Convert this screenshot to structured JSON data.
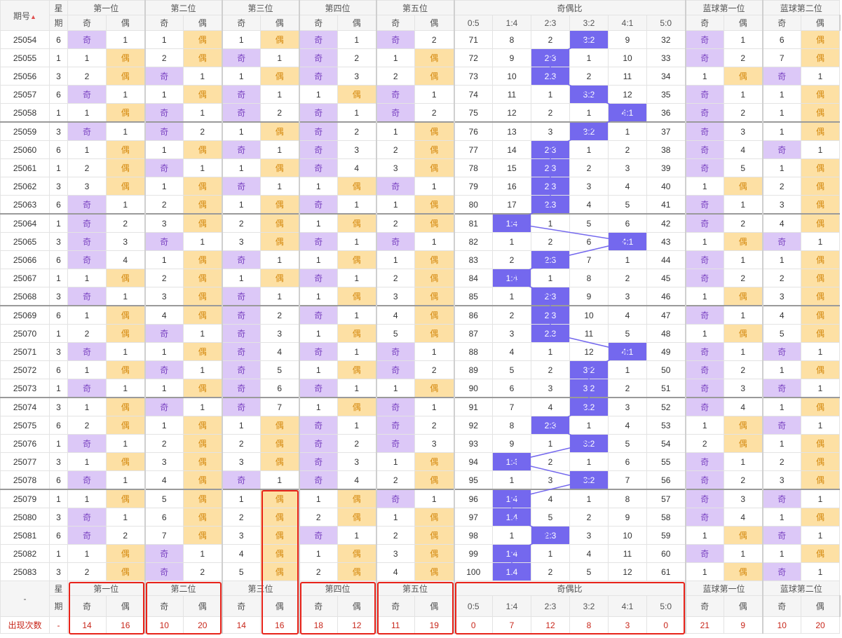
{
  "header": {
    "issue": "期号",
    "weekday_top": "星",
    "weekday_bottom": "期",
    "positions": [
      "第一位",
      "第二位",
      "第三位",
      "第四位",
      "第五位"
    ],
    "odd": "奇",
    "even": "偶",
    "ratio_title": "奇偶比",
    "ratios": [
      "0:5",
      "1:4",
      "2:3",
      "3:2",
      "4:1",
      "5:0"
    ],
    "blue": [
      "蓝球第一位",
      "蓝球第二位"
    ]
  },
  "rows": [
    {
      "id": "25054",
      "wk": "6",
      "c": [
        "奇",
        "1",
        "1",
        "偶",
        "1",
        "偶",
        "奇",
        "1",
        "奇",
        "2"
      ],
      "r": [
        "71",
        "8",
        "2",
        "3:2",
        "9",
        "32"
      ],
      "hi": 3,
      "b": [
        "奇",
        "1",
        "6",
        "偶"
      ]
    },
    {
      "id": "25055",
      "wk": "1",
      "c": [
        "1",
        "偶",
        "2",
        "偶",
        "奇",
        "1",
        "奇",
        "2",
        "1",
        "偶"
      ],
      "r": [
        "72",
        "9",
        "2:3",
        "1",
        "10",
        "33"
      ],
      "hi": 2,
      "b": [
        "奇",
        "2",
        "7",
        "偶"
      ]
    },
    {
      "id": "25056",
      "wk": "3",
      "c": [
        "2",
        "偶",
        "奇",
        "1",
        "1",
        "偶",
        "奇",
        "3",
        "2",
        "偶"
      ],
      "r": [
        "73",
        "10",
        "2:3",
        "2",
        "11",
        "34"
      ],
      "hi": 2,
      "b": [
        "1",
        "偶",
        "奇",
        "1"
      ]
    },
    {
      "id": "25057",
      "wk": "6",
      "c": [
        "奇",
        "1",
        "1",
        "偶",
        "奇",
        "1",
        "1",
        "偶",
        "奇",
        "1"
      ],
      "r": [
        "74",
        "11",
        "1",
        "3:2",
        "12",
        "35"
      ],
      "hi": 3,
      "b": [
        "奇",
        "1",
        "1",
        "偶"
      ]
    },
    {
      "id": "25058",
      "wk": "1",
      "c": [
        "1",
        "偶",
        "奇",
        "1",
        "奇",
        "2",
        "奇",
        "1",
        "奇",
        "2"
      ],
      "r": [
        "75",
        "12",
        "2",
        "1",
        "4:1",
        "36"
      ],
      "hi": 4,
      "b": [
        "奇",
        "2",
        "1",
        "偶"
      ]
    },
    {
      "id": "25059",
      "wk": "3",
      "c": [
        "奇",
        "1",
        "奇",
        "2",
        "1",
        "偶",
        "奇",
        "2",
        "1",
        "偶"
      ],
      "r": [
        "76",
        "13",
        "3",
        "3:2",
        "1",
        "37"
      ],
      "hi": 3,
      "b": [
        "奇",
        "3",
        "1",
        "偶"
      ]
    },
    {
      "id": "25060",
      "wk": "6",
      "c": [
        "1",
        "偶",
        "1",
        "偶",
        "奇",
        "1",
        "奇",
        "3",
        "2",
        "偶"
      ],
      "r": [
        "77",
        "14",
        "2:3",
        "1",
        "2",
        "38"
      ],
      "hi": 2,
      "b": [
        "奇",
        "4",
        "奇",
        "1"
      ]
    },
    {
      "id": "25061",
      "wk": "1",
      "c": [
        "2",
        "偶",
        "奇",
        "1",
        "1",
        "偶",
        "奇",
        "4",
        "3",
        "偶"
      ],
      "r": [
        "78",
        "15",
        "2:3",
        "2",
        "3",
        "39"
      ],
      "hi": 2,
      "b": [
        "奇",
        "5",
        "1",
        "偶"
      ]
    },
    {
      "id": "25062",
      "wk": "3",
      "c": [
        "3",
        "偶",
        "1",
        "偶",
        "奇",
        "1",
        "1",
        "偶",
        "奇",
        "1"
      ],
      "r": [
        "79",
        "16",
        "2:3",
        "3",
        "4",
        "40"
      ],
      "hi": 2,
      "b": [
        "1",
        "偶",
        "2",
        "偶"
      ]
    },
    {
      "id": "25063",
      "wk": "6",
      "c": [
        "奇",
        "1",
        "2",
        "偶",
        "1",
        "偶",
        "奇",
        "1",
        "1",
        "偶"
      ],
      "r": [
        "80",
        "17",
        "2:3",
        "4",
        "5",
        "41"
      ],
      "hi": 2,
      "b": [
        "奇",
        "1",
        "3",
        "偶"
      ]
    },
    {
      "id": "25064",
      "wk": "1",
      "c": [
        "奇",
        "2",
        "3",
        "偶",
        "2",
        "偶",
        "1",
        "偶",
        "2",
        "偶"
      ],
      "r": [
        "81",
        "1:4",
        "1",
        "5",
        "6",
        "42"
      ],
      "hi": 1,
      "b": [
        "奇",
        "2",
        "4",
        "偶"
      ]
    },
    {
      "id": "25065",
      "wk": "3",
      "c": [
        "奇",
        "3",
        "奇",
        "1",
        "3",
        "偶",
        "奇",
        "1",
        "奇",
        "1"
      ],
      "r": [
        "82",
        "1",
        "2",
        "6",
        "4:1",
        "43"
      ],
      "hi": 4,
      "b": [
        "1",
        "偶",
        "奇",
        "1"
      ]
    },
    {
      "id": "25066",
      "wk": "6",
      "c": [
        "奇",
        "4",
        "1",
        "偶",
        "奇",
        "1",
        "1",
        "偶",
        "1",
        "偶"
      ],
      "r": [
        "83",
        "2",
        "2:3",
        "7",
        "1",
        "44"
      ],
      "hi": 2,
      "b": [
        "奇",
        "1",
        "1",
        "偶"
      ]
    },
    {
      "id": "25067",
      "wk": "1",
      "c": [
        "1",
        "偶",
        "2",
        "偶",
        "1",
        "偶",
        "奇",
        "1",
        "2",
        "偶"
      ],
      "r": [
        "84",
        "1:4",
        "1",
        "8",
        "2",
        "45"
      ],
      "hi": 1,
      "b": [
        "奇",
        "2",
        "2",
        "偶"
      ]
    },
    {
      "id": "25068",
      "wk": "3",
      "c": [
        "奇",
        "1",
        "3",
        "偶",
        "奇",
        "1",
        "1",
        "偶",
        "3",
        "偶"
      ],
      "r": [
        "85",
        "1",
        "2:3",
        "9",
        "3",
        "46"
      ],
      "hi": 2,
      "b": [
        "1",
        "偶",
        "3",
        "偶"
      ]
    },
    {
      "id": "25069",
      "wk": "6",
      "c": [
        "1",
        "偶",
        "4",
        "偶",
        "奇",
        "2",
        "奇",
        "1",
        "4",
        "偶"
      ],
      "r": [
        "86",
        "2",
        "2:3",
        "10",
        "4",
        "47"
      ],
      "hi": 2,
      "b": [
        "奇",
        "1",
        "4",
        "偶"
      ]
    },
    {
      "id": "25070",
      "wk": "1",
      "c": [
        "2",
        "偶",
        "奇",
        "1",
        "奇",
        "3",
        "1",
        "偶",
        "5",
        "偶"
      ],
      "r": [
        "87",
        "3",
        "2:3",
        "11",
        "5",
        "48"
      ],
      "hi": 2,
      "b": [
        "1",
        "偶",
        "5",
        "偶"
      ]
    },
    {
      "id": "25071",
      "wk": "3",
      "c": [
        "奇",
        "1",
        "1",
        "偶",
        "奇",
        "4",
        "奇",
        "1",
        "奇",
        "1"
      ],
      "r": [
        "88",
        "4",
        "1",
        "12",
        "4:1",
        "49"
      ],
      "hi": 4,
      "b": [
        "奇",
        "1",
        "奇",
        "1"
      ]
    },
    {
      "id": "25072",
      "wk": "6",
      "c": [
        "1",
        "偶",
        "奇",
        "1",
        "奇",
        "5",
        "1",
        "偶",
        "奇",
        "2"
      ],
      "r": [
        "89",
        "5",
        "2",
        "3:2",
        "1",
        "50"
      ],
      "hi": 3,
      "b": [
        "奇",
        "2",
        "1",
        "偶"
      ]
    },
    {
      "id": "25073",
      "wk": "1",
      "c": [
        "奇",
        "1",
        "1",
        "偶",
        "奇",
        "6",
        "奇",
        "1",
        "1",
        "偶"
      ],
      "r": [
        "90",
        "6",
        "3",
        "3:2",
        "2",
        "51"
      ],
      "hi": 3,
      "b": [
        "奇",
        "3",
        "奇",
        "1"
      ]
    },
    {
      "id": "25074",
      "wk": "3",
      "c": [
        "1",
        "偶",
        "奇",
        "1",
        "奇",
        "7",
        "1",
        "偶",
        "奇",
        "1"
      ],
      "r": [
        "91",
        "7",
        "4",
        "3:2",
        "3",
        "52"
      ],
      "hi": 3,
      "b": [
        "奇",
        "4",
        "1",
        "偶"
      ]
    },
    {
      "id": "25075",
      "wk": "6",
      "c": [
        "2",
        "偶",
        "1",
        "偶",
        "1",
        "偶",
        "奇",
        "1",
        "奇",
        "2"
      ],
      "r": [
        "92",
        "8",
        "2:3",
        "1",
        "4",
        "53"
      ],
      "hi": 2,
      "b": [
        "1",
        "偶",
        "奇",
        "1"
      ]
    },
    {
      "id": "25076",
      "wk": "1",
      "c": [
        "奇",
        "1",
        "2",
        "偶",
        "2",
        "偶",
        "奇",
        "2",
        "奇",
        "3"
      ],
      "r": [
        "93",
        "9",
        "1",
        "3:2",
        "5",
        "54"
      ],
      "hi": 3,
      "b": [
        "2",
        "偶",
        "1",
        "偶"
      ]
    },
    {
      "id": "25077",
      "wk": "3",
      "c": [
        "1",
        "偶",
        "3",
        "偶",
        "3",
        "偶",
        "奇",
        "3",
        "1",
        "偶"
      ],
      "r": [
        "94",
        "1:4",
        "2",
        "1",
        "6",
        "55"
      ],
      "hi": 1,
      "b": [
        "奇",
        "1",
        "2",
        "偶"
      ]
    },
    {
      "id": "25078",
      "wk": "6",
      "c": [
        "奇",
        "1",
        "4",
        "偶",
        "奇",
        "1",
        "奇",
        "4",
        "2",
        "偶"
      ],
      "r": [
        "95",
        "1",
        "3",
        "3:2",
        "7",
        "56"
      ],
      "hi": 3,
      "b": [
        "奇",
        "2",
        "3",
        "偶"
      ]
    },
    {
      "id": "25079",
      "wk": "1",
      "c": [
        "1",
        "偶",
        "5",
        "偶",
        "1",
        "偶",
        "1",
        "偶",
        "奇",
        "1"
      ],
      "r": [
        "96",
        "1:4",
        "4",
        "1",
        "8",
        "57"
      ],
      "hi": 1,
      "b": [
        "奇",
        "3",
        "奇",
        "1"
      ]
    },
    {
      "id": "25080",
      "wk": "3",
      "c": [
        "奇",
        "1",
        "6",
        "偶",
        "2",
        "偶",
        "2",
        "偶",
        "1",
        "偶"
      ],
      "r": [
        "97",
        "1:4",
        "5",
        "2",
        "9",
        "58"
      ],
      "hi": 1,
      "b": [
        "奇",
        "4",
        "1",
        "偶"
      ]
    },
    {
      "id": "25081",
      "wk": "6",
      "c": [
        "奇",
        "2",
        "7",
        "偶",
        "3",
        "偶",
        "奇",
        "1",
        "2",
        "偶"
      ],
      "r": [
        "98",
        "1",
        "2:3",
        "3",
        "10",
        "59"
      ],
      "hi": 2,
      "b": [
        "1",
        "偶",
        "奇",
        "1"
      ]
    },
    {
      "id": "25082",
      "wk": "1",
      "c": [
        "1",
        "偶",
        "奇",
        "1",
        "4",
        "偶",
        "1",
        "偶",
        "3",
        "偶"
      ],
      "r": [
        "99",
        "1:4",
        "1",
        "4",
        "11",
        "60"
      ],
      "hi": 1,
      "b": [
        "奇",
        "1",
        "1",
        "偶"
      ]
    },
    {
      "id": "25083",
      "wk": "3",
      "c": [
        "2",
        "偶",
        "奇",
        "2",
        "5",
        "偶",
        "2",
        "偶",
        "4",
        "偶"
      ],
      "r": [
        "100",
        "1:4",
        "2",
        "5",
        "12",
        "61"
      ],
      "hi": 1,
      "b": [
        "1",
        "偶",
        "奇",
        "1"
      ]
    }
  ],
  "footer": {
    "dash": "-",
    "count_label": "出现次数",
    "count_dash": "-",
    "counts": [
      "14",
      "16",
      "10",
      "20",
      "14",
      "16",
      "18",
      "12",
      "11",
      "19",
      "0",
      "7",
      "12",
      "8",
      "3",
      "0",
      "21",
      "9",
      "10",
      "20"
    ]
  },
  "colors": {
    "odd_bg": "#dcc8f7",
    "even_bg": "#fde0a4",
    "highlight": "#7468ee",
    "line": "#7468ee",
    "count_text": "#c8271b",
    "box": "#e8231a"
  }
}
